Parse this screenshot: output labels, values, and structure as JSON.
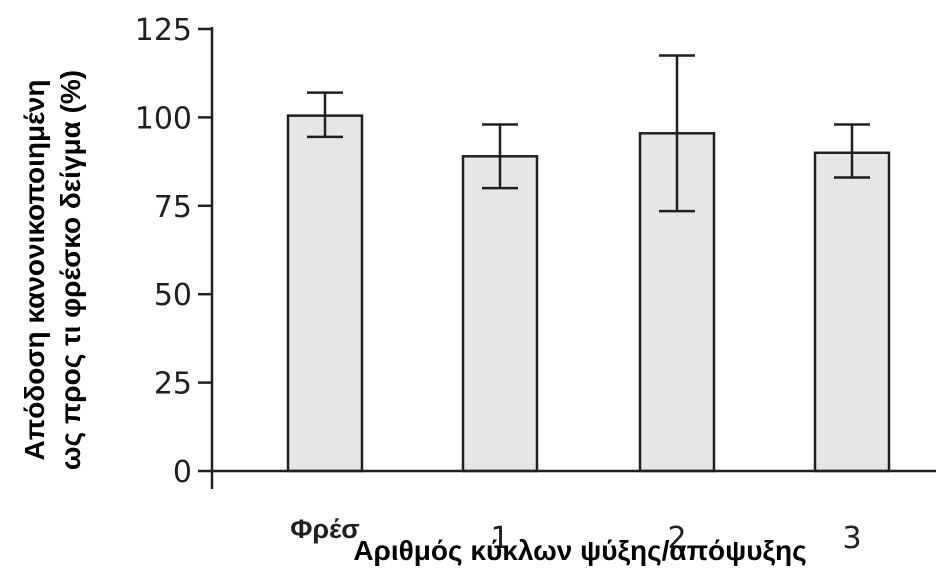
{
  "chart_data": {
    "type": "bar",
    "categories": [
      "Φρέσ",
      "1",
      "2",
      "3"
    ],
    "values": [
      100.5,
      89,
      95.5,
      90
    ],
    "error_low": [
      94.5,
      80,
      73.5,
      83
    ],
    "error_high": [
      107,
      98,
      117.5,
      98
    ],
    "xlabel": "Αριθμός κύκλων ψύξης/απόψυξης",
    "ylabel_lines": [
      "Απόδοση κανονικοποιημένη",
      "ως προς τι φρέσκο δείγμα (%)"
    ],
    "yticks": [
      "0",
      "25",
      "50",
      "75",
      "100",
      "125"
    ],
    "ylim": [
      0,
      125
    ],
    "grid": false,
    "colors": {
      "bar_fill": "#e6e6e6",
      "stroke": "#231f20"
    }
  }
}
